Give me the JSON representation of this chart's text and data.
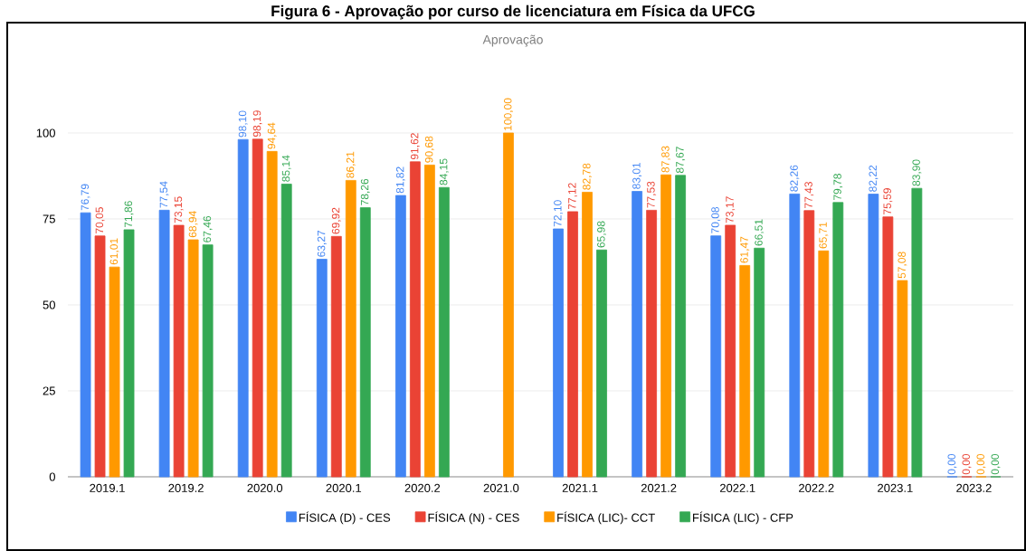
{
  "chart_data": {
    "type": "bar",
    "title": "Figura 6 - Aprovação por curso de licenciatura em Física da UFCG",
    "subtitle": "Aprovação",
    "categories": [
      "2019.1",
      "2019.2",
      "2020.0",
      "2020.1",
      "2020.2",
      "2021.0",
      "2021.1",
      "2021.2",
      "2022.1",
      "2022.2",
      "2023.1",
      "2023.2"
    ],
    "series": [
      {
        "name": "FÍSICA (D) - CES",
        "color": "#4285f4",
        "values": [
          76.79,
          77.54,
          98.1,
          63.27,
          81.82,
          null,
          72.1,
          83.01,
          70.08,
          82.26,
          82.22,
          0
        ],
        "value_labels": [
          "76,79",
          "77,54",
          "98,10",
          "63,27",
          "81,82",
          null,
          "72,10",
          "83,01",
          "70,08",
          "82,26",
          "82,22",
          "0,00"
        ]
      },
      {
        "name": "FÍSICA (N) - CES",
        "color": "#ea4335",
        "values": [
          70.05,
          73.15,
          98.19,
          69.92,
          91.62,
          null,
          77.12,
          77.53,
          73.17,
          77.43,
          75.59,
          0
        ],
        "value_labels": [
          "70,05",
          "73,15",
          "98,19",
          "69,92",
          "91,62",
          null,
          "77,12",
          "77,53",
          "73,17",
          "77,43",
          "75,59",
          "0,00"
        ]
      },
      {
        "name": "FÍSICA (LIC)- CCT",
        "color": "#ff9900",
        "values": [
          61.01,
          68.94,
          94.64,
          86.21,
          90.68,
          100.0,
          82.78,
          87.83,
          61.47,
          65.71,
          57.08,
          0
        ],
        "value_labels": [
          "61,01",
          "68,94",
          "94,64",
          "86,21",
          "90,68",
          "100,00",
          "82,78",
          "87,83",
          "61,47",
          "65,71",
          "57,08",
          "0,00"
        ]
      },
      {
        "name": "FÍSICA (LIC) - CFP",
        "color": "#34a853",
        "values": [
          71.86,
          67.46,
          85.14,
          78.26,
          84.15,
          null,
          65.98,
          87.67,
          66.51,
          79.78,
          83.9,
          0
        ],
        "value_labels": [
          "71,86",
          "67,46",
          "85,14",
          "78,26",
          "84,15",
          null,
          "65,98",
          "87,67",
          "66,51",
          "79,78",
          "83,90",
          "0,00"
        ]
      }
    ],
    "ylim": [
      0,
      100
    ],
    "yticks": [
      0,
      25,
      50,
      75,
      100
    ],
    "grid": "y",
    "legend": "bottom"
  }
}
